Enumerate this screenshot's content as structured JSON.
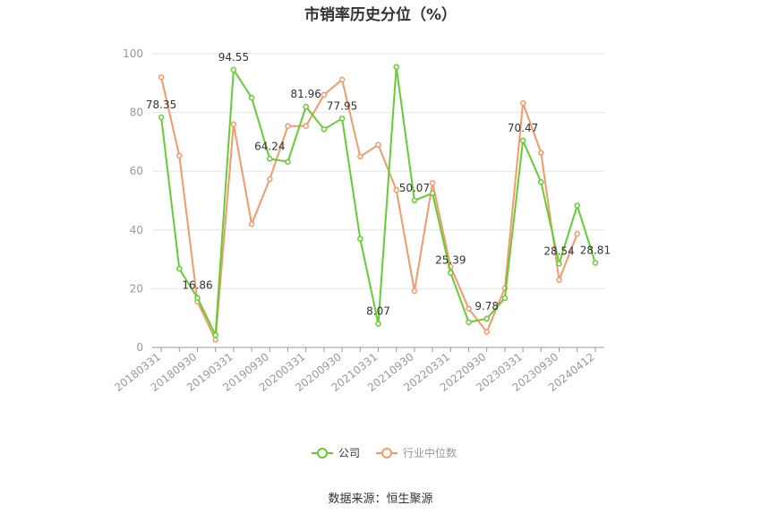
{
  "title": "市销率历史分位（%）",
  "source": "数据来源：恒生聚源",
  "colors": {
    "company": "#66cc33",
    "industry": "#f4996c",
    "grid": "#e6e6e6",
    "axis": "#999999",
    "text": "#333333"
  },
  "chart_data": {
    "type": "line",
    "title": "市销率历史分位（%）",
    "xlabel": "",
    "ylabel": "",
    "ylim": [
      0,
      100
    ],
    "yticks": [
      0,
      20,
      40,
      60,
      80,
      100
    ],
    "grid": true,
    "legend": "bottom-center",
    "x": [
      "20180331",
      "20180630",
      "20180930",
      "20181231",
      "20190331",
      "20190630",
      "20190930",
      "20191231",
      "20200331",
      "20200630",
      "20200930",
      "20201231",
      "20210331",
      "20210630",
      "20210930",
      "20211231",
      "20220331",
      "20220630",
      "20220930",
      "20221231",
      "20230331",
      "20230630",
      "20230930",
      "20231231",
      "20240412"
    ],
    "x_tick_labels": [
      "20180331",
      "20180930",
      "20190331",
      "20190930",
      "20200331",
      "20200930",
      "20210331",
      "20210930",
      "20220331",
      "20220930",
      "20230331",
      "20230930",
      "20240412"
    ],
    "series": [
      {
        "name": "公司",
        "color": "#66cc33",
        "values": [
          78.35,
          26.8,
          16.86,
          4.2,
          94.55,
          85.0,
          64.24,
          63.2,
          81.96,
          74.3,
          77.95,
          37.0,
          8.07,
          95.5,
          50.07,
          52.5,
          25.39,
          8.6,
          9.78,
          16.8,
          70.47,
          56.3,
          28.54,
          48.3,
          28.81
        ],
        "labels": {
          "0": "78.35",
          "2": "16.86",
          "4": "94.55",
          "6": "64.24",
          "8": "81.96",
          "10": "77.95",
          "12": "8.07",
          "14": "50.07",
          "16": "25.39",
          "18": "9.78",
          "20": "70.47",
          "22": "28.54",
          "24": "28.81"
        }
      },
      {
        "name": "行业中位数",
        "color": "#f4996c",
        "values": [
          92.0,
          65.3,
          15.6,
          2.6,
          76.0,
          42.0,
          57.3,
          75.4,
          75.4,
          86.0,
          91.2,
          65.0,
          69.0,
          53.6,
          19.2,
          56.0,
          27.5,
          13.2,
          5.3,
          20.2,
          83.2,
          66.3,
          23.0,
          38.7,
          null
        ]
      }
    ]
  }
}
